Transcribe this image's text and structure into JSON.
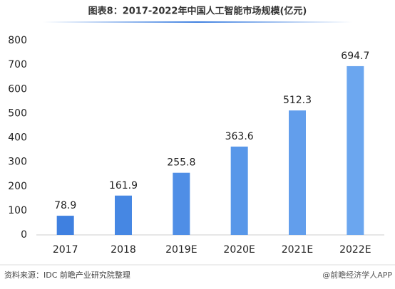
{
  "chart_data": {
    "type": "bar",
    "title": "图表8：2017-2022年中国人工智能市场规模(亿元)",
    "categories": [
      "2017",
      "2018",
      "2019E",
      "2020E",
      "2021E",
      "2022E"
    ],
    "values": [
      78.9,
      161.9,
      255.8,
      363.6,
      512.3,
      694.7
    ],
    "colors": [
      "#3f80e0",
      "#4687e3",
      "#4f8ee6",
      "#5897e9",
      "#629eec",
      "#6ba6ef"
    ],
    "ylim": [
      0,
      800
    ],
    "yticks": [
      0,
      100,
      200,
      300,
      400,
      500,
      600,
      700,
      800
    ],
    "grid": false,
    "source": "资料来源：IDC 前瞻产业研究院整理",
    "credit": "@前瞻经济学人APP"
  }
}
